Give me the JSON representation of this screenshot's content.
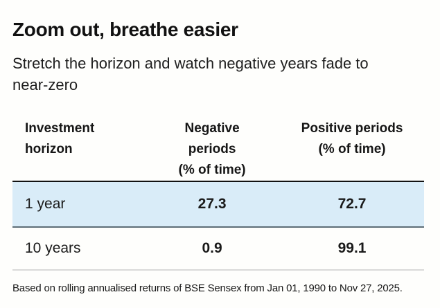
{
  "header": {
    "title": "Zoom out, breathe easier",
    "subtitle": "Stretch the horizon and watch negative years fade to near-zero"
  },
  "table": {
    "columns": [
      {
        "id": "investment-horizon",
        "lines": [
          "Investment",
          "horizon"
        ]
      },
      {
        "id": "negative-periods",
        "lines": [
          "Negative",
          "periods",
          "(% of time)"
        ]
      },
      {
        "id": "positive-periods",
        "lines": [
          "Positive periods",
          "(% of time)"
        ]
      }
    ],
    "rows": [
      {
        "horizon": "1 year",
        "negative": "27.3",
        "positive": "72.7",
        "highlighted": true
      },
      {
        "horizon": "10 years",
        "negative": "0.9",
        "positive": "99.1",
        "highlighted": false
      }
    ]
  },
  "footer": {
    "note": "Based on rolling annualised returns of BSE Sensex from Jan 01, 1990 to Nov 27, 2025."
  },
  "colors": {
    "highlight_row": "#d9ecf8",
    "text": "#1a1a1a",
    "rule_dark": "#121212",
    "rule_mid": "#5d6d76",
    "rule_light": "#d9d9d9",
    "background": "#fefefc"
  },
  "chart_data": {
    "type": "table",
    "title": "Zoom out, breathe easier",
    "subtitle": "Stretch the horizon and watch negative years fade to near-zero",
    "columns": [
      "Investment horizon",
      "Negative periods (% of time)",
      "Positive periods (% of time)"
    ],
    "rows": [
      [
        "1 year",
        27.3,
        72.7
      ],
      [
        "10 years",
        0.9,
        99.1
      ]
    ],
    "note": "Based on rolling annualised returns of BSE Sensex from Jan 01, 1990 to Nov 27, 2025.",
    "highlighted_row": "1 year"
  }
}
